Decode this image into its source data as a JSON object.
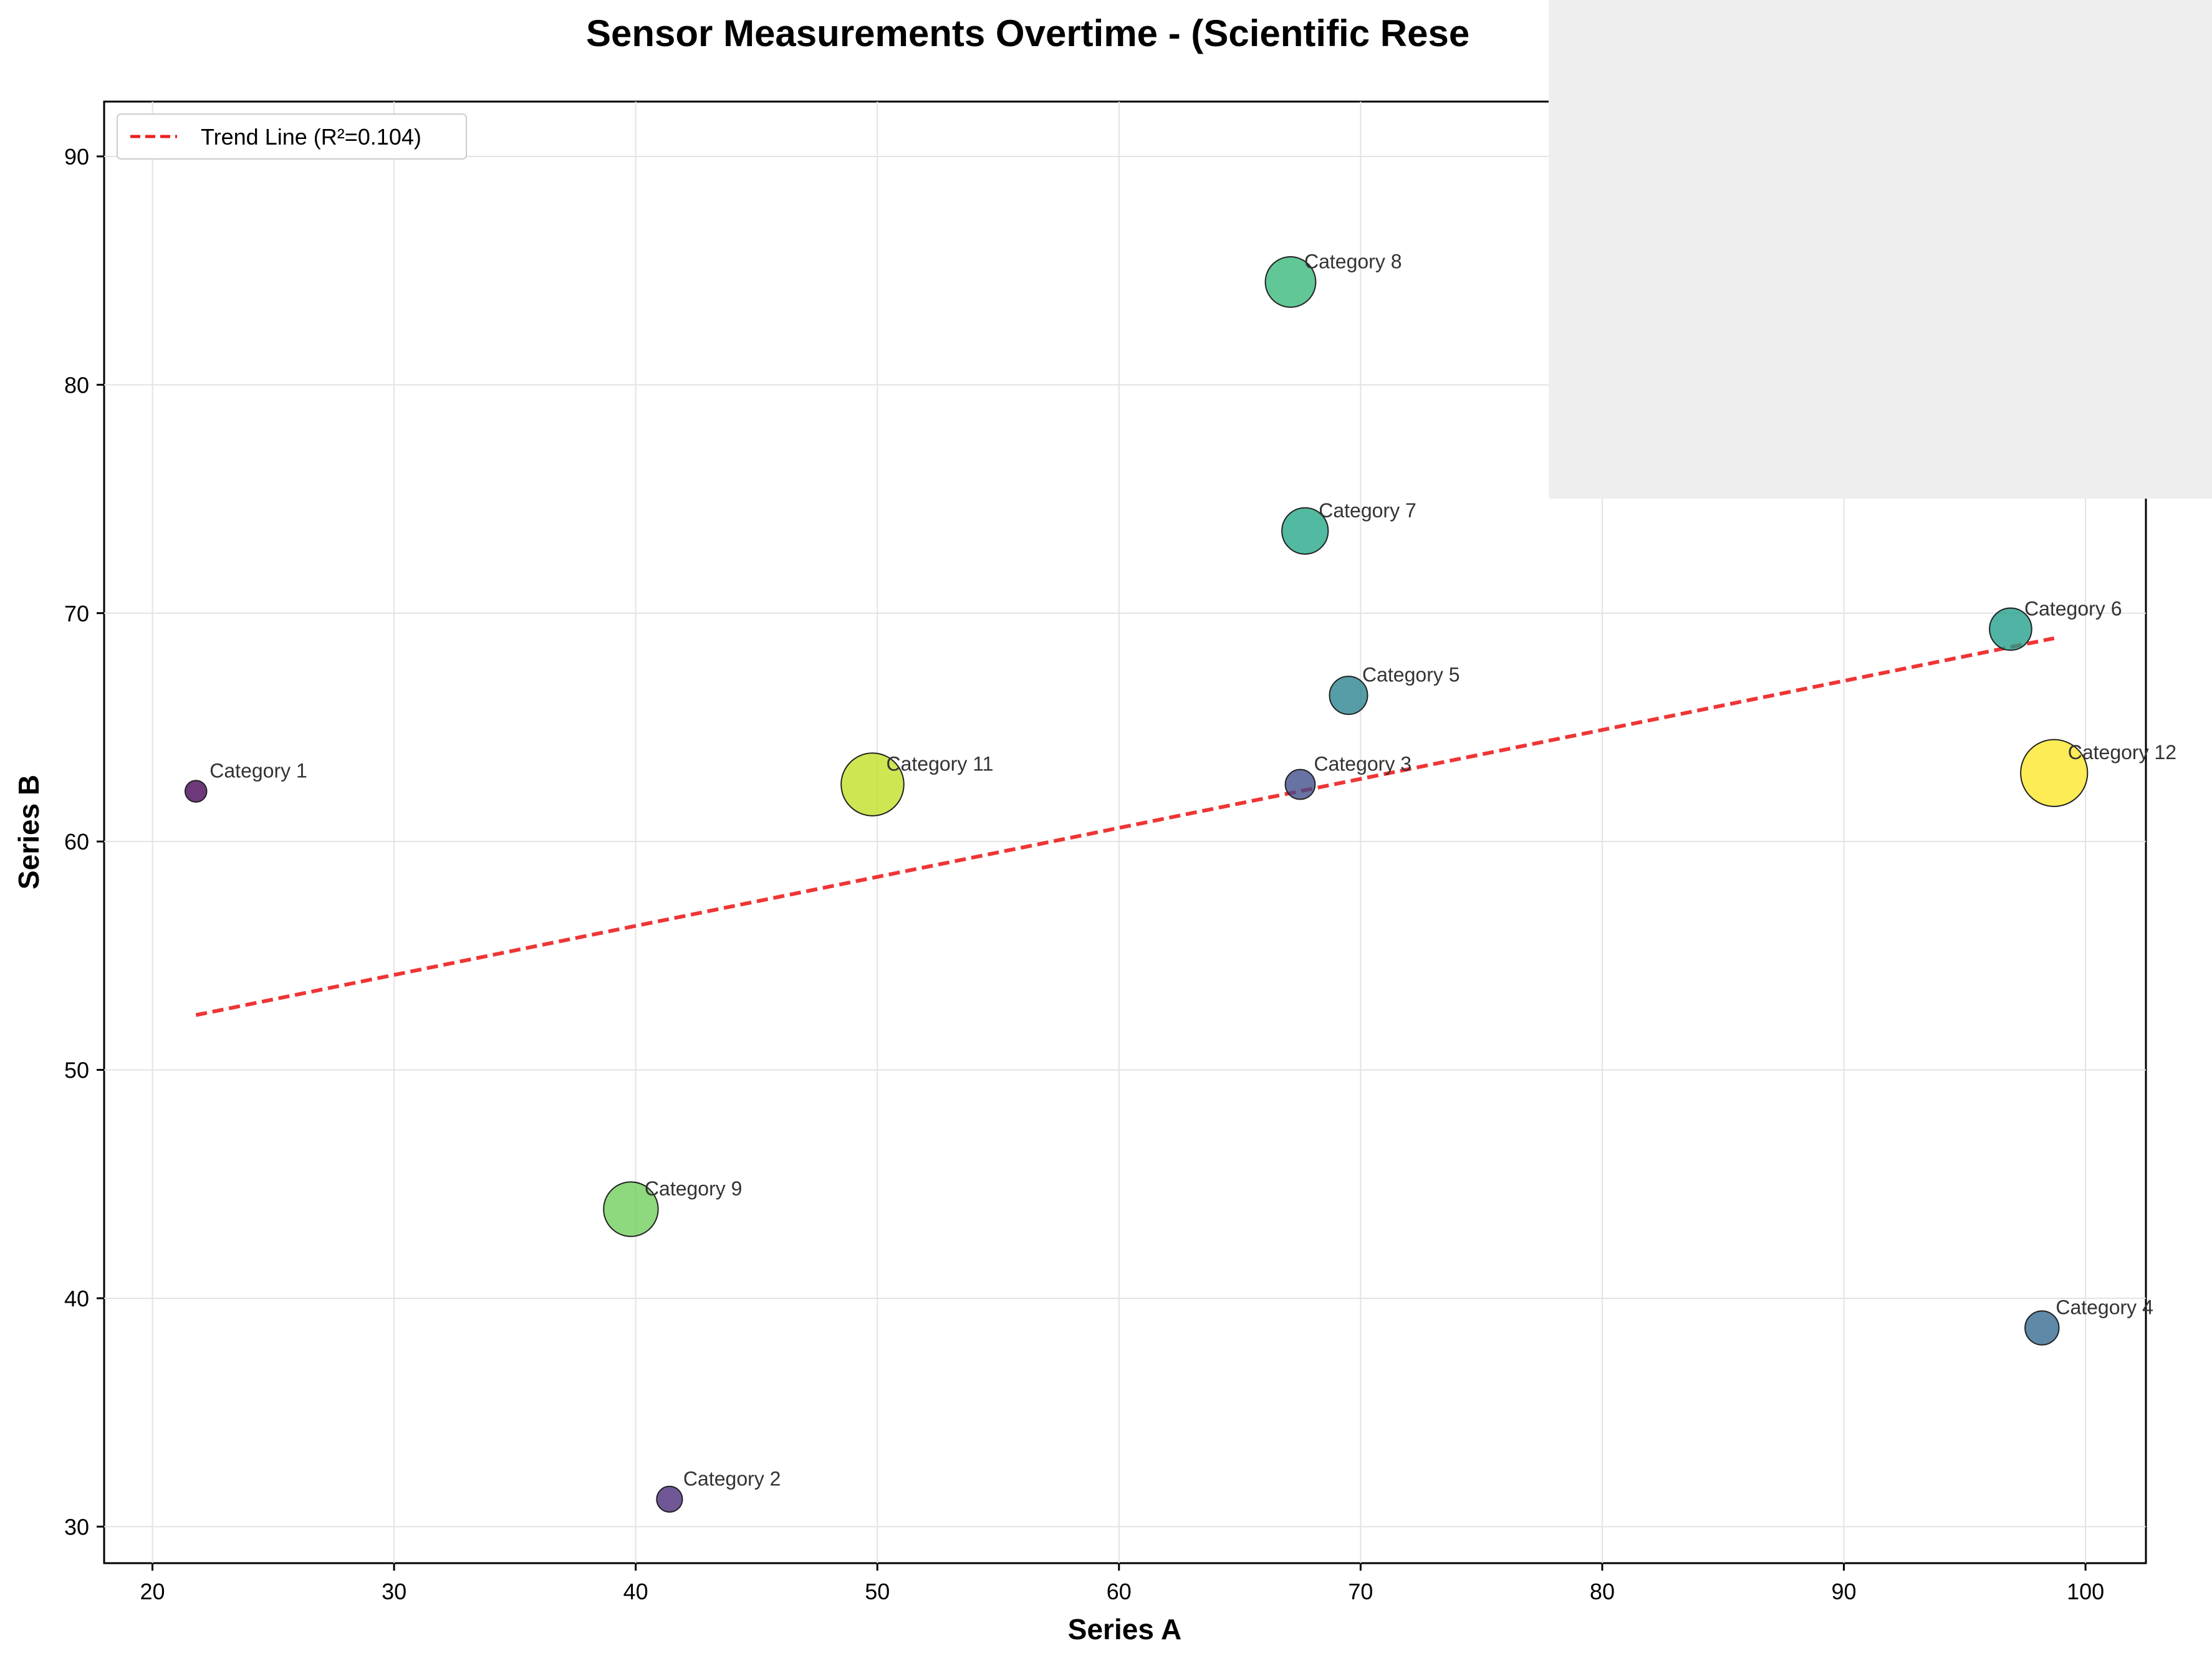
{
  "chart_data": {
    "type": "scatter",
    "title": "Sensor Measurements Overtime - (Scientific Rese",
    "xlabel": "Series A",
    "ylabel": "Series B",
    "xlim": [
      18,
      102.5
    ],
    "ylim": [
      28.4,
      92.4
    ],
    "xticks": [
      20,
      30,
      40,
      50,
      60,
      70,
      80,
      90,
      100
    ],
    "yticks": [
      30,
      40,
      50,
      60,
      70,
      80,
      90
    ],
    "grid": true,
    "legend_position": "top-left",
    "colormap": "viridis",
    "points": [
      {
        "label": "Category 1",
        "x": 21.8,
        "y": 62.2,
        "size": 1,
        "color": "#440154"
      },
      {
        "label": "Category 2",
        "x": 41.4,
        "y": 31.2,
        "size": 2,
        "color": "#482878"
      },
      {
        "label": "Category 3",
        "x": 67.5,
        "y": 62.5,
        "size": 3,
        "color": "#3e4a89"
      },
      {
        "label": "Category 4",
        "x": 98.2,
        "y": 38.7,
        "size": 4,
        "color": "#31688e"
      },
      {
        "label": "Category 5",
        "x": 69.5,
        "y": 66.4,
        "size": 5,
        "color": "#26828e"
      },
      {
        "label": "Category 6",
        "x": 96.9,
        "y": 69.3,
        "size": 6,
        "color": "#1f9e89"
      },
      {
        "label": "Category 7",
        "x": 67.7,
        "y": 73.6,
        "size": 7,
        "color": "#21a685"
      },
      {
        "label": "Category 8",
        "x": 67.1,
        "y": 84.5,
        "size": 8,
        "color": "#35b779"
      },
      {
        "label": "Category 9",
        "x": 39.8,
        "y": 43.9,
        "size": 9,
        "color": "#6ece58"
      },
      {
        "label": "Category 11",
        "x": 49.8,
        "y": 62.5,
        "size": 11,
        "color": "#c2df23"
      },
      {
        "label": "Category 12",
        "x": 98.7,
        "y": 63.0,
        "size": 12,
        "color": "#fde725"
      }
    ],
    "trend_line": {
      "label": "Trend Line (R²=0.104)",
      "x": [
        21.8,
        98.7
      ],
      "y": [
        52.4,
        68.9
      ],
      "color": "#ee2020"
    }
  },
  "overlay_panel": {
    "color": "#eeeeee"
  }
}
